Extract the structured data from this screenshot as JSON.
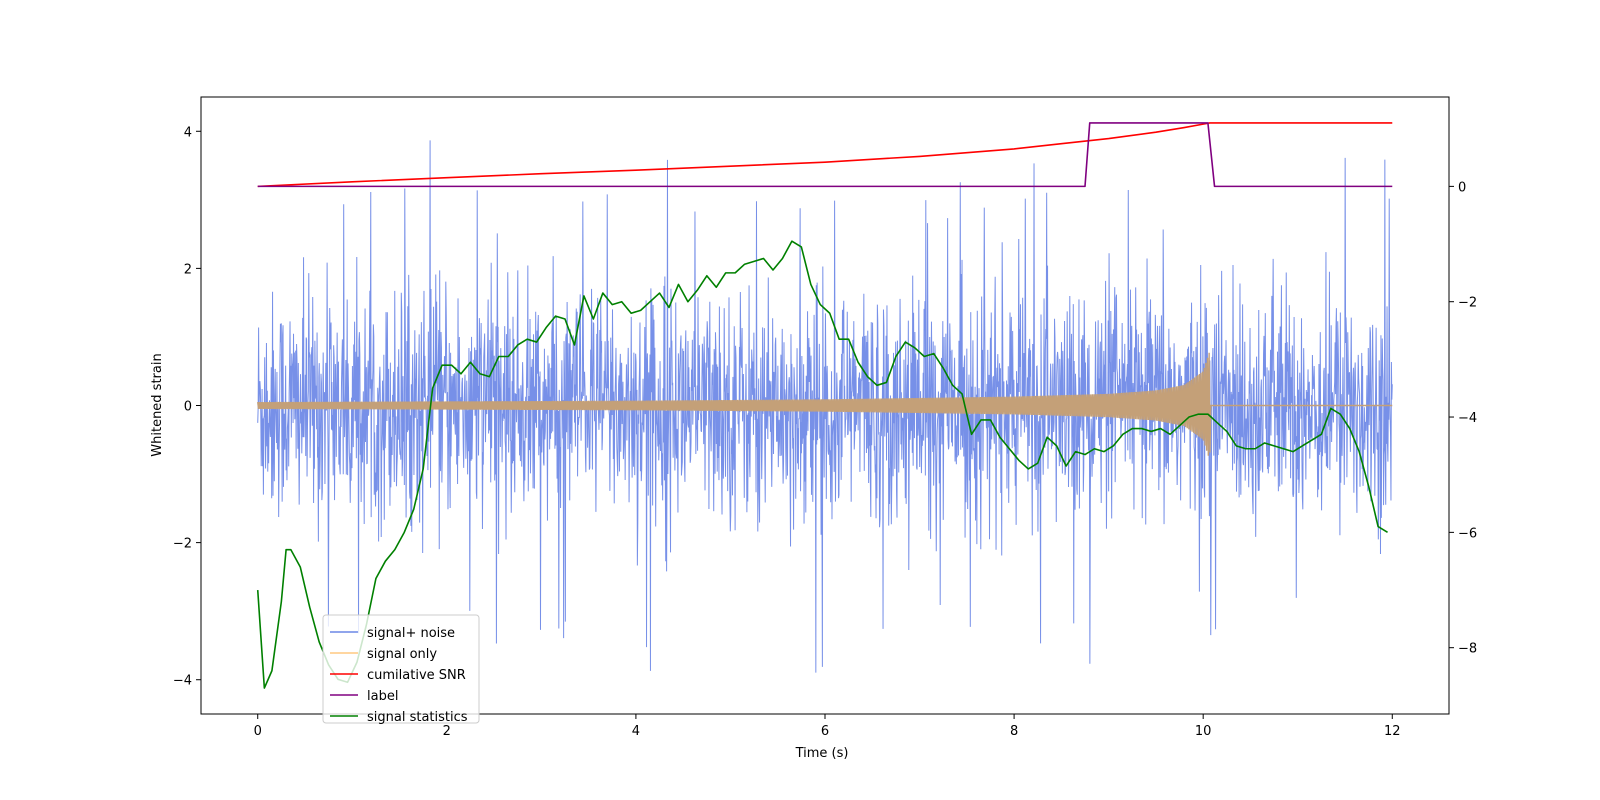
{
  "chart_data": {
    "type": "line",
    "title": "",
    "xlabel": "Time (s)",
    "ylabel": "Whitened strain",
    "y2label": "",
    "xlim": [
      -0.6,
      12.6
    ],
    "ylim": [
      -4.5,
      4.5
    ],
    "y2lim": [
      -9.15,
      1.55
    ],
    "xticks": [
      0,
      2,
      4,
      6,
      8,
      10,
      12
    ],
    "yticks": [
      -4,
      -2,
      0,
      2,
      4
    ],
    "y2ticks": [
      -8,
      -6,
      -4,
      -2,
      0
    ],
    "legend_position": "lower-left",
    "legend": [
      {
        "label": "signal+ noise",
        "color": "#6b87e6"
      },
      {
        "label": "signal only",
        "color": "#ffc880"
      },
      {
        "label": "cumilative SNR",
        "color": "#ff0000"
      },
      {
        "label": "label",
        "color": "#800080"
      },
      {
        "label": "signal statistics",
        "color": "#008000"
      }
    ],
    "series": [
      {
        "name": "signal+ noise",
        "axis": "left",
        "kind": "noise-band",
        "color": "#6b87e6",
        "x_range": [
          0,
          12
        ],
        "typical_amplitude": 1.8,
        "max": 4.0,
        "min": -4.15
      },
      {
        "name": "signal only",
        "axis": "left",
        "kind": "chirp-envelope",
        "color": "#c4a078",
        "x": [
          0,
          2,
          4,
          6,
          8,
          9,
          9.5,
          9.8,
          10,
          10.07,
          10.08,
          12
        ],
        "amplitude": [
          0.05,
          0.06,
          0.07,
          0.09,
          0.13,
          0.17,
          0.22,
          0.3,
          0.5,
          0.8,
          0.0,
          0.0
        ]
      },
      {
        "name": "cumilative SNR",
        "axis": "right",
        "color": "#ff0000",
        "x": [
          0,
          1,
          2,
          3,
          4,
          5,
          6,
          7,
          8,
          8.5,
          9,
          9.5,
          9.8,
          10,
          10.07,
          10.08,
          12
        ],
        "values": [
          0.0,
          0.08,
          0.15,
          0.22,
          0.28,
          0.35,
          0.42,
          0.52,
          0.65,
          0.74,
          0.83,
          0.94,
          1.02,
          1.08,
          1.1,
          1.1,
          1.1
        ]
      },
      {
        "name": "label",
        "axis": "right",
        "color": "#800080",
        "x": [
          0,
          8.75,
          8.8,
          10.05,
          10.12,
          12
        ],
        "values": [
          0,
          0,
          1.1,
          1.1,
          0,
          0
        ]
      },
      {
        "name": "signal statistics",
        "axis": "right",
        "color": "#008000",
        "x": [
          0,
          0.07,
          0.15,
          0.25,
          0.3,
          0.35,
          0.45,
          0.55,
          0.65,
          0.75,
          0.85,
          0.95,
          1.05,
          1.15,
          1.25,
          1.35,
          1.45,
          1.55,
          1.65,
          1.75,
          1.85,
          1.95,
          2.05,
          2.15,
          2.25,
          2.35,
          2.45,
          2.55,
          2.65,
          2.75,
          2.85,
          2.95,
          3.05,
          3.15,
          3.25,
          3.35,
          3.45,
          3.55,
          3.65,
          3.75,
          3.85,
          3.95,
          4.05,
          4.15,
          4.25,
          4.35,
          4.45,
          4.55,
          4.65,
          4.75,
          4.85,
          4.95,
          5.05,
          5.15,
          5.25,
          5.35,
          5.45,
          5.55,
          5.65,
          5.75,
          5.85,
          5.95,
          6.05,
          6.15,
          6.25,
          6.35,
          6.45,
          6.55,
          6.65,
          6.75,
          6.85,
          6.95,
          7.05,
          7.15,
          7.25,
          7.35,
          7.45,
          7.55,
          7.65,
          7.75,
          7.85,
          7.95,
          8.05,
          8.15,
          8.25,
          8.35,
          8.45,
          8.55,
          8.65,
          8.75,
          8.85,
          8.95,
          9.05,
          9.15,
          9.25,
          9.35,
          9.45,
          9.55,
          9.65,
          9.75,
          9.85,
          9.95,
          10.05,
          10.15,
          10.25,
          10.35,
          10.45,
          10.55,
          10.65,
          10.75,
          10.85,
          10.95,
          11.05,
          11.15,
          11.25,
          11.35,
          11.45,
          11.55,
          11.65,
          11.75,
          11.85,
          11.95
        ],
        "values": [
          -7.0,
          -8.7,
          -8.4,
          -7.2,
          -6.3,
          -6.3,
          -6.6,
          -7.3,
          -7.9,
          -8.3,
          -8.55,
          -8.6,
          -8.25,
          -7.6,
          -6.8,
          -6.5,
          -6.3,
          -6.0,
          -5.6,
          -4.9,
          -3.5,
          -3.1,
          -3.1,
          -3.25,
          -3.05,
          -3.25,
          -3.3,
          -2.95,
          -2.95,
          -2.75,
          -2.65,
          -2.7,
          -2.45,
          -2.25,
          -2.3,
          -2.75,
          -1.9,
          -2.3,
          -1.85,
          -2.05,
          -2.0,
          -2.2,
          -2.15,
          -2.0,
          -1.85,
          -2.1,
          -1.7,
          -2.0,
          -1.8,
          -1.55,
          -1.75,
          -1.5,
          -1.5,
          -1.35,
          -1.3,
          -1.25,
          -1.45,
          -1.25,
          -0.95,
          -1.05,
          -1.7,
          -2.05,
          -2.2,
          -2.65,
          -2.65,
          -3.05,
          -3.3,
          -3.45,
          -3.4,
          -2.95,
          -2.7,
          -2.8,
          -2.95,
          -2.9,
          -3.15,
          -3.45,
          -3.6,
          -4.3,
          -4.05,
          -4.05,
          -4.35,
          -4.55,
          -4.75,
          -4.9,
          -4.8,
          -4.35,
          -4.5,
          -4.85,
          -4.6,
          -4.65,
          -4.55,
          -4.6,
          -4.5,
          -4.3,
          -4.2,
          -4.2,
          -4.25,
          -4.2,
          -4.3,
          -4.15,
          -4.0,
          -3.95,
          -3.95,
          -4.1,
          -4.25,
          -4.5,
          -4.55,
          -4.55,
          -4.45,
          -4.5,
          -4.55,
          -4.6,
          -4.5,
          -4.4,
          -4.3,
          -3.85,
          -3.95,
          -4.2,
          -4.6,
          -5.2,
          -5.9,
          -6.0
        ]
      }
    ]
  }
}
